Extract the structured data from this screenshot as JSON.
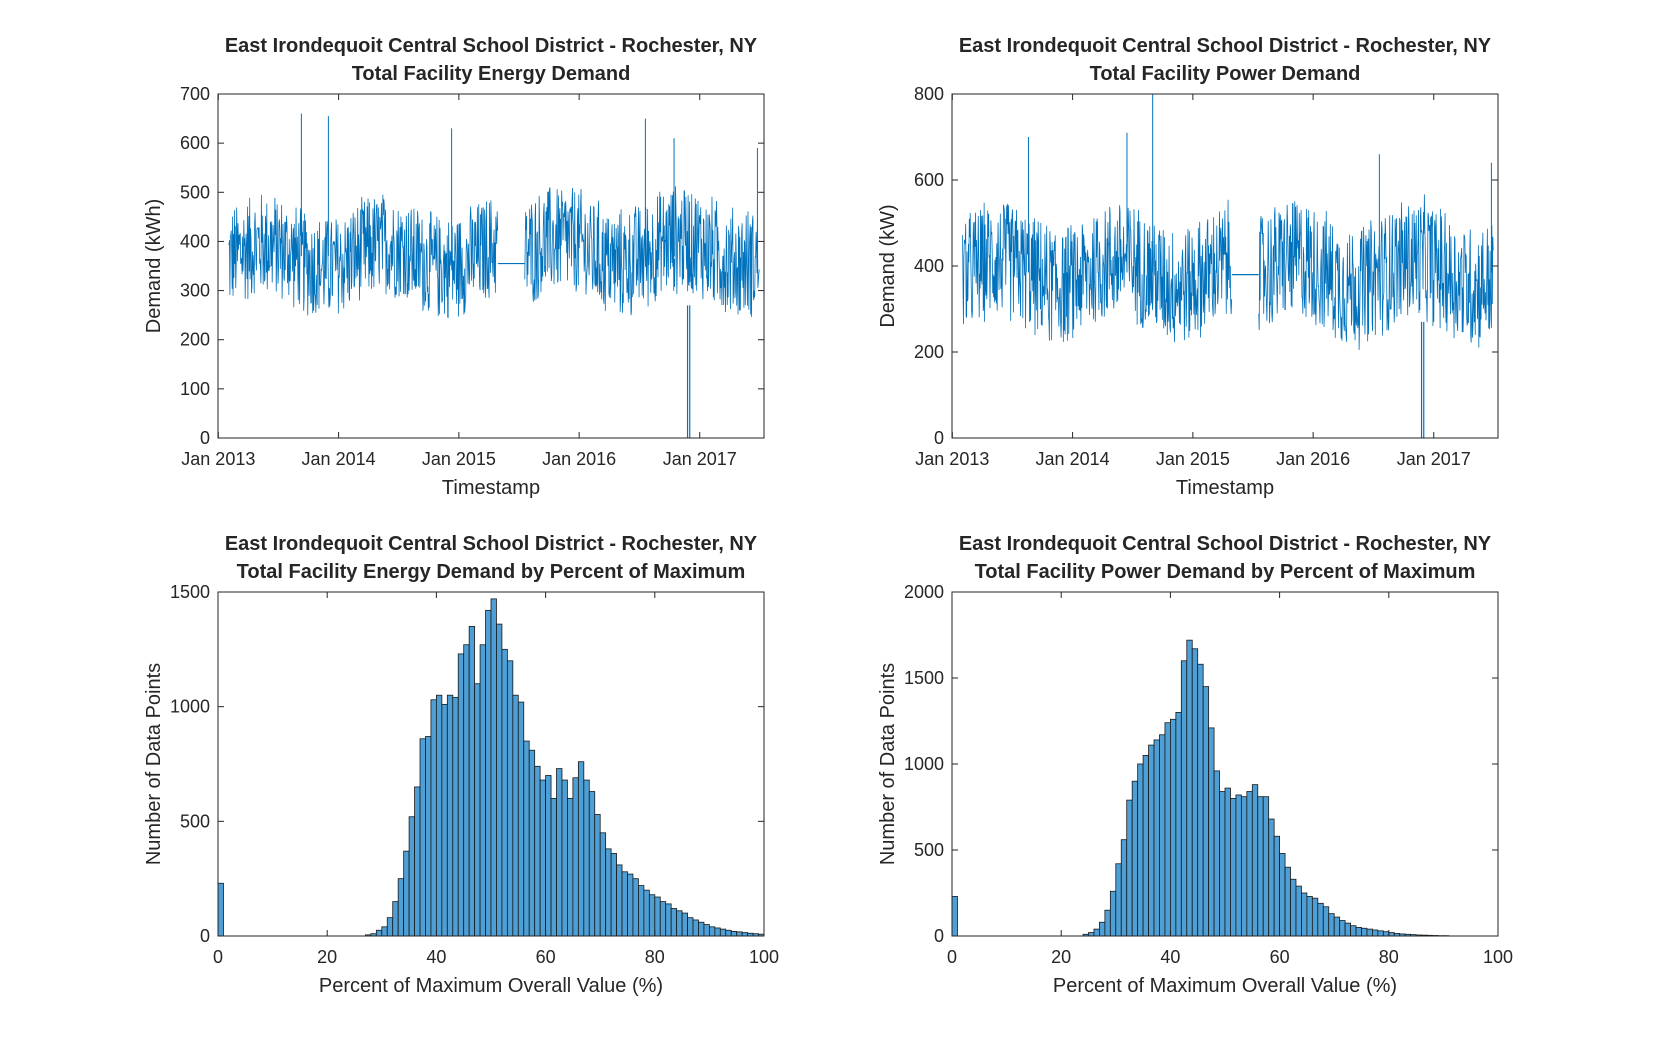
{
  "figure": {
    "background": "#ffffff",
    "line_color": "#0072BD",
    "bar_fill": "#4D9FD6",
    "bar_edge": "#1a1a1a"
  },
  "chart_data": [
    {
      "id": "energy-timeseries",
      "type": "line",
      "title": "East Irondequoit Central School District - Rochester, NY",
      "subtitle": "Total Facility Energy Demand",
      "xlabel": "Timestamp",
      "ylabel": "Demand (kWh)",
      "xlim": [
        "2012-12-31",
        "2017-07-15"
      ],
      "ylim": [
        0,
        700
      ],
      "xticks": [
        "Jan 2013",
        "Jan 2014",
        "Jan 2015",
        "Jan 2016",
        "Jan 2017"
      ],
      "yticks": [
        "0",
        "100",
        "200",
        "300",
        "400",
        "500",
        "600",
        "700"
      ],
      "grid": false,
      "series": [
        {
          "color": "#0072BD",
          "segments": [
            {
              "x": [
                "2013-02-01",
                "2015-04-30"
              ],
              "center": 370,
              "lower": 270,
              "upper": 470
            },
            {
              "x": [
                "2015-04-30",
                "2015-07-20"
              ],
              "center": 355,
              "lower": 355,
              "upper": 360
            },
            {
              "x": [
                "2015-07-20",
                "2017-07-01"
              ],
              "center": 380,
              "lower": 270,
              "upper": 480
            }
          ],
          "peaks": [
            {
              "x": "2013-09-10",
              "y": 660
            },
            {
              "x": "2013-12-01",
              "y": 655
            },
            {
              "x": "2014-12-10",
              "y": 630
            },
            {
              "x": "2016-07-20",
              "y": 650
            },
            {
              "x": "2016-10-15",
              "y": 610
            },
            {
              "x": "2017-06-25",
              "y": 590
            }
          ],
          "minimum": {
            "x": "2016-11-25",
            "y": 0
          }
        }
      ]
    },
    {
      "id": "power-timeseries",
      "type": "line",
      "title": "East Irondequoit Central School District - Rochester, NY",
      "subtitle": "Total Facility Power Demand",
      "xlabel": "Timestamp",
      "ylabel": "Demand (kW)",
      "xlim": [
        "2012-12-31",
        "2017-07-15"
      ],
      "ylim": [
        0,
        800
      ],
      "xticks": [
        "Jan 2013",
        "Jan 2014",
        "Jan 2015",
        "Jan 2016",
        "Jan 2017"
      ],
      "yticks": [
        "0",
        "200",
        "400",
        "600",
        "800"
      ],
      "grid": false,
      "series": [
        {
          "color": "#0072BD",
          "segments": [
            {
              "x": [
                "2013-02-01",
                "2015-04-30"
              ],
              "center": 385,
              "lower": 280,
              "upper": 540
            },
            {
              "x": [
                "2015-04-30",
                "2015-07-20"
              ],
              "center": 380,
              "lower": 375,
              "upper": 385
            },
            {
              "x": [
                "2015-07-20",
                "2017-07-01"
              ],
              "center": 385,
              "lower": 270,
              "upper": 540
            }
          ],
          "peaks": [
            {
              "x": "2014-09-01",
              "y": 800
            },
            {
              "x": "2013-08-20",
              "y": 700
            },
            {
              "x": "2014-06-15",
              "y": 710
            },
            {
              "x": "2016-07-20",
              "y": 660
            },
            {
              "x": "2017-06-25",
              "y": 640
            }
          ],
          "minimum": {
            "x": "2016-11-25",
            "y": 0
          }
        }
      ]
    },
    {
      "id": "energy-histogram",
      "type": "bar",
      "title": "East Irondequoit Central School District - Rochester, NY",
      "subtitle": "Total Facility Energy Demand by Percent of Maximum",
      "xlabel": "Percent of Maximum Overall Value (%)",
      "ylabel": "Number of Data Points",
      "xlim": [
        0,
        100
      ],
      "ylim": [
        0,
        1500
      ],
      "xticks": [
        "0",
        "20",
        "40",
        "60",
        "80",
        "100"
      ],
      "yticks": [
        "0",
        "500",
        "1000",
        "1500"
      ],
      "grid": false,
      "bin_width": 1,
      "bins_start": [
        0,
        27,
        28,
        29,
        30,
        31,
        32,
        33,
        34,
        35,
        36,
        37,
        38,
        39,
        40,
        41,
        42,
        43,
        44,
        45,
        46,
        47,
        48,
        49,
        50,
        51,
        52,
        53,
        54,
        55,
        56,
        57,
        58,
        59,
        60,
        61,
        62,
        63,
        64,
        65,
        66,
        67,
        68,
        69,
        70,
        71,
        72,
        73,
        74,
        75,
        76,
        77,
        78,
        79,
        80,
        81,
        82,
        83,
        84,
        85,
        86,
        87,
        88,
        89,
        90,
        91,
        92,
        93,
        94,
        95,
        96,
        97,
        98,
        99
      ],
      "values": [
        230,
        5,
        10,
        25,
        40,
        80,
        150,
        250,
        370,
        520,
        650,
        860,
        870,
        1030,
        1050,
        1010,
        1050,
        1040,
        1230,
        1270,
        1350,
        1100,
        1270,
        1420,
        1470,
        1360,
        1250,
        1200,
        1050,
        1020,
        850,
        810,
        740,
        680,
        700,
        600,
        730,
        680,
        600,
        690,
        760,
        680,
        630,
        530,
        450,
        380,
        360,
        310,
        280,
        270,
        250,
        220,
        200,
        180,
        170,
        150,
        140,
        120,
        110,
        100,
        80,
        70,
        60,
        50,
        40,
        35,
        30,
        25,
        20,
        18,
        15,
        12,
        10,
        8
      ]
    },
    {
      "id": "power-histogram",
      "type": "bar",
      "title": "East Irondequoit Central School District - Rochester, NY",
      "subtitle": "Total Facility Power Demand by Percent of Maximum",
      "xlabel": "Percent of Maximum Overall Value (%)",
      "ylabel": "Number of Data Points",
      "xlim": [
        0,
        100
      ],
      "ylim": [
        0,
        2000
      ],
      "xticks": [
        "0",
        "20",
        "40",
        "60",
        "80",
        "100"
      ],
      "yticks": [
        "0",
        "500",
        "1000",
        "1500",
        "2000"
      ],
      "grid": false,
      "bin_width": 1,
      "bins_start": [
        0,
        24,
        25,
        26,
        27,
        28,
        29,
        30,
        31,
        32,
        33,
        34,
        35,
        36,
        37,
        38,
        39,
        40,
        41,
        42,
        43,
        44,
        45,
        46,
        47,
        48,
        49,
        50,
        51,
        52,
        53,
        54,
        55,
        56,
        57,
        58,
        59,
        60,
        61,
        62,
        63,
        64,
        65,
        66,
        67,
        68,
        69,
        70,
        71,
        72,
        73,
        74,
        75,
        76,
        77,
        78,
        79,
        80,
        81,
        82,
        83,
        84,
        85,
        86,
        87,
        88,
        89,
        90
      ],
      "values": [
        230,
        10,
        20,
        40,
        80,
        150,
        260,
        420,
        560,
        790,
        900,
        1000,
        1050,
        1110,
        1140,
        1170,
        1240,
        1260,
        1300,
        1600,
        1720,
        1670,
        1580,
        1450,
        1210,
        960,
        840,
        860,
        800,
        820,
        810,
        840,
        880,
        810,
        810,
        680,
        580,
        480,
        400,
        330,
        290,
        250,
        230,
        220,
        190,
        170,
        130,
        110,
        90,
        75,
        60,
        50,
        45,
        40,
        35,
        30,
        25,
        20,
        15,
        12,
        10,
        8,
        6,
        5,
        4,
        3,
        2,
        2
      ]
    }
  ]
}
